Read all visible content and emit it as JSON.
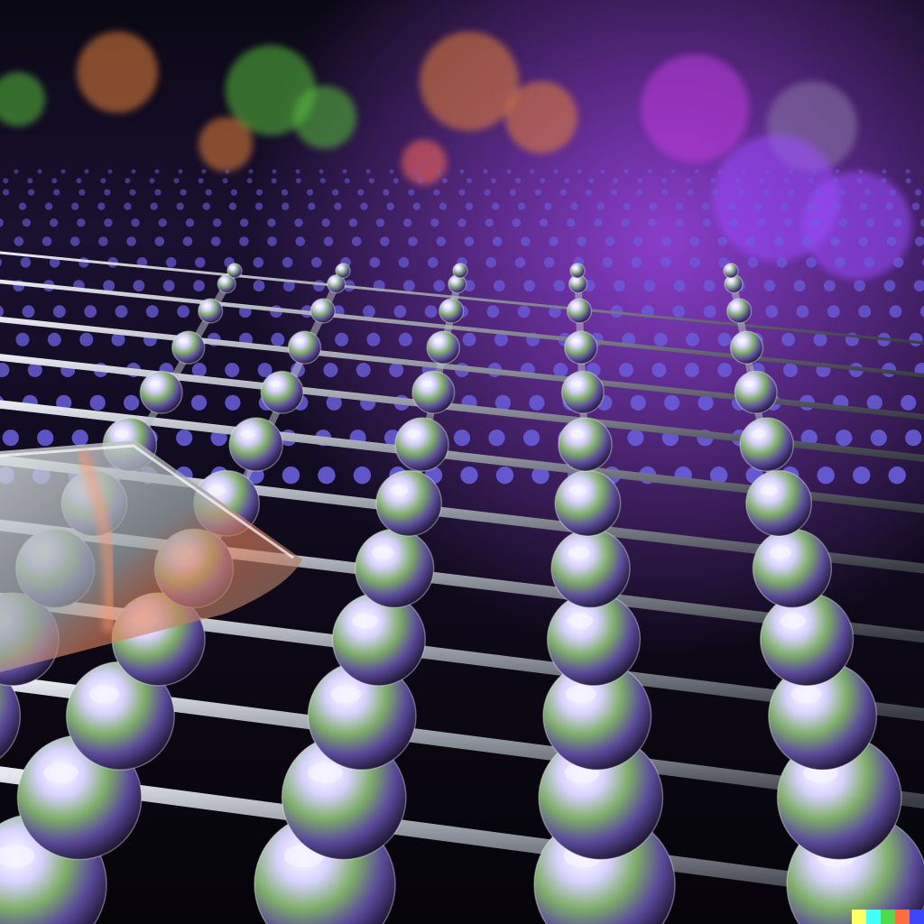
{
  "image": {
    "kind": "photo-like render",
    "subject": "glass-bead-lattice"
  },
  "palette": {
    "background": "#07060c",
    "rod": "#b8bcc4",
    "bead_highlight": "#f4f2ff",
    "glow_purple": "#9a4dff",
    "glow_green": "#58c03a",
    "glow_orange": "#e8823a",
    "glow_magenta": "#c03adf",
    "far_beads": "#6a5fe0"
  },
  "watermark": {
    "colors": [
      "#ffff66",
      "#42ffff",
      "#51da4c",
      "#ff6e3c",
      "#3c46ff"
    ]
  }
}
